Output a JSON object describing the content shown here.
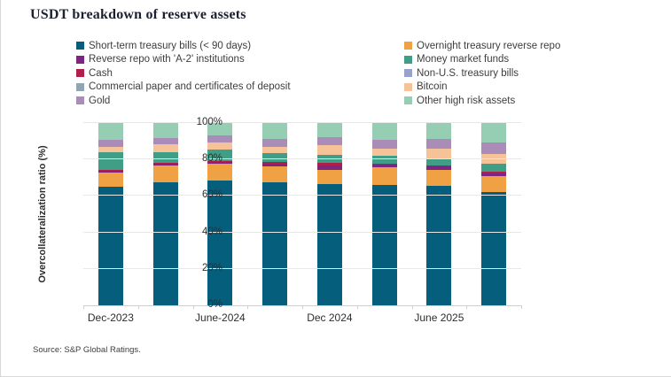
{
  "title": "USDT breakdown of reserve assets",
  "source": "Source: S&P Global Ratings.",
  "legend": {
    "columns": [
      [
        "short_term",
        "a2_repo",
        "cash",
        "commercial_paper",
        "gold"
      ],
      [
        "overnight_repo",
        "money_market",
        "non_us_bills",
        "bitcoin",
        "other_high_risk"
      ]
    ]
  },
  "chart_data": {
    "type": "bar",
    "stacked": true,
    "title": "USDT breakdown of reserve assets",
    "xlabel": "",
    "ylabel": "Overcollateralization ratio (%)",
    "ylim": [
      0,
      100
    ],
    "ytick_labels": [
      "0%",
      "20%",
      "40%",
      "60%",
      "80%",
      "100%"
    ],
    "grid": true,
    "legend_position": "top",
    "categories": [
      "Dec-2023",
      "",
      "June-2024",
      "",
      "Dec 2024",
      "",
      "June 2025",
      ""
    ],
    "series": [
      {
        "id": "short_term",
        "name": "Short-term treasury bills (< 90 days)",
        "color": "#065e7d",
        "values": [
          65,
          67.5,
          68.5,
          67.5,
          66.5,
          66,
          65.5,
          62
        ]
      },
      {
        "id": "overnight_repo",
        "name": "Overnight treasury reverse repo",
        "color": "#f0a144",
        "values": [
          8,
          9,
          9,
          8.5,
          8,
          9.5,
          9,
          9
        ]
      },
      {
        "id": "a2_repo",
        "name": "Reverse repo with 'A-2' institutions",
        "color": "#7c2583",
        "values": [
          1,
          1,
          1,
          1.5,
          2,
          1.5,
          1.5,
          1.5
        ]
      },
      {
        "id": "cash",
        "name": "Cash",
        "color": "#b01f49",
        "values": [
          0.5,
          0.5,
          0.5,
          1,
          1.5,
          0.5,
          0.5,
          1
        ]
      },
      {
        "id": "money_market",
        "name": "Money market funds",
        "color": "#3f9e85",
        "values": [
          9.5,
          6,
          6.5,
          5,
          4.5,
          4.5,
          4,
          4
        ]
      },
      {
        "id": "non_us_bills",
        "name": "Non-U.S. treasury bills",
        "color": "#97a3cb",
        "values": [
          0,
          0,
          0,
          0,
          0,
          0,
          0,
          0
        ]
      },
      {
        "id": "commercial_paper",
        "name": "Commercial paper and certificates of deposit",
        "color": "#92a5b3",
        "values": [
          0,
          0,
          0,
          0,
          0,
          0,
          0,
          0
        ]
      },
      {
        "id": "bitcoin",
        "name": "Bitcoin",
        "color": "#f5c397",
        "values": [
          3,
          4.5,
          4,
          3.5,
          5.5,
          4,
          5.5,
          5.5
        ]
      },
      {
        "id": "gold",
        "name": "Gold",
        "color": "#aa8cb8",
        "values": [
          4,
          3.5,
          3.5,
          4.5,
          4.5,
          5,
          5.5,
          6.5
        ]
      },
      {
        "id": "other_high_risk",
        "name": "Other high risk assets",
        "color": "#95ceb2",
        "values": [
          9,
          8,
          7,
          8.5,
          7.5,
          9,
          8.5,
          10.5
        ]
      }
    ]
  }
}
